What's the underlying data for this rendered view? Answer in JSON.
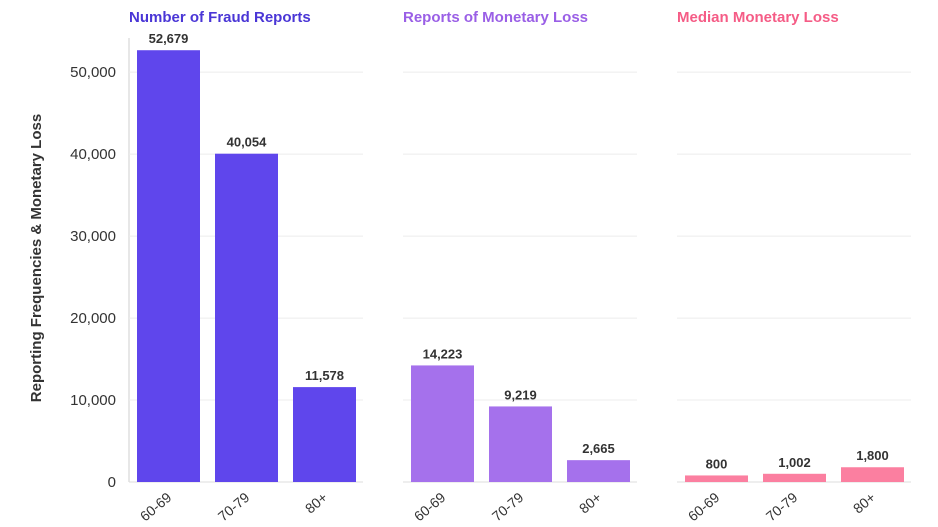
{
  "chart_data": {
    "type": "bar",
    "ylabel": "Reporting Frequencies & Monetary Loss",
    "ylim": [
      0,
      56000
    ],
    "yticks": [
      0,
      10000,
      20000,
      30000,
      40000,
      50000
    ],
    "ytick_labels": [
      "0",
      "10,000",
      "20,000",
      "30,000",
      "40,000",
      "50,000"
    ],
    "grid": true,
    "panels": [
      {
        "title": "Number of Fraud Reports",
        "color": "#5f46ec",
        "title_color": "#4a36d6",
        "categories": [
          "60-69",
          "70-79",
          "80+"
        ],
        "category_labels": [
          "60-69",
          "70-79",
          "80+"
        ],
        "values": [
          52679,
          40054,
          11578
        ],
        "labels": [
          "52,679",
          "40,054",
          "11,578"
        ]
      },
      {
        "title": "Reports of Monetary Loss",
        "color": "#a571ec",
        "title_color": "#9a5fe6",
        "categories": [
          "60-69",
          "70-79",
          "80+"
        ],
        "category_labels": [
          "60-69",
          "70-79",
          "80+"
        ],
        "values": [
          14223,
          9219,
          2665
        ],
        "labels": [
          "14,223",
          "9,219",
          "2,665"
        ]
      },
      {
        "title": "Median Monetary Loss",
        "color": "#fb7fa0",
        "title_color": "#f55c86",
        "categories": [
          "60-69",
          "70-79",
          "80+"
        ],
        "category_labels": [
          "60-69",
          "70-79",
          "80+"
        ],
        "values": [
          800,
          1002,
          1800
        ],
        "labels": [
          "800",
          "1,002",
          "1,800"
        ]
      }
    ]
  }
}
